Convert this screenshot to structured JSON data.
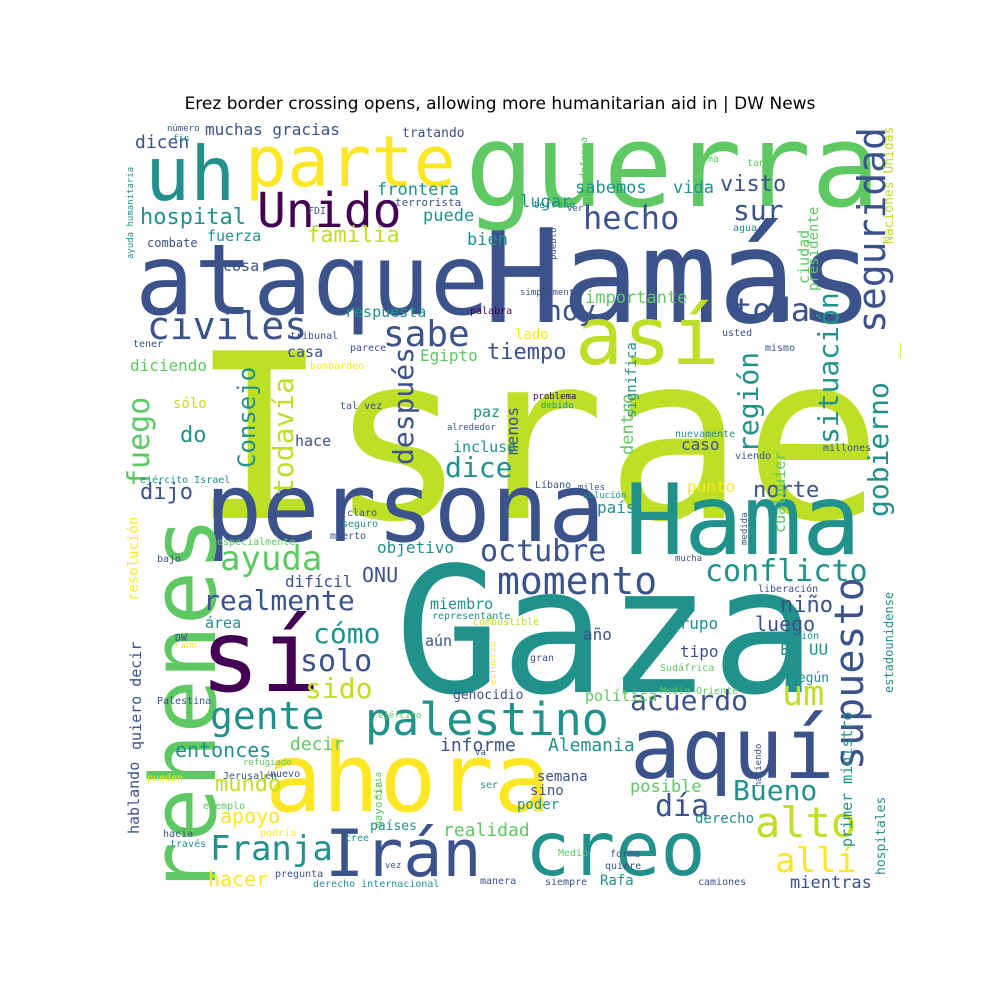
{
  "title": "Erez border crossing opens, allowing more humanitarian aid in | DW News",
  "palette": [
    "#440154",
    "#3b528b",
    "#21918c",
    "#5ec962",
    "#fde725",
    "#bddf26",
    "#2a788e",
    "#7ad151"
  ],
  "words": [
    "Israel",
    "Gaza",
    "Hamás",
    "guerra",
    "persona",
    "Hama",
    "ataque",
    "rehenes",
    "ahora",
    "sí",
    "uh",
    "parte",
    "así",
    "aquí",
    "creo",
    "Irán",
    "palestino",
    "momento",
    "Unido",
    "civiles",
    "gente",
    "seguridad",
    "supuesto",
    "conflicto",
    "sabe",
    "alto",
    "ayuda",
    "allí",
    "Franja",
    "hecho",
    "toda",
    "realmente",
    "octubre",
    "situación",
    "gobierno",
    "región",
    "después",
    "todavía",
    "Consejo",
    "fuego",
    "dice",
    "solo",
    "cómo",
    "um",
    "acuerdo",
    "Bueno",
    "día",
    "sido",
    "hoy",
    "sur",
    "visto",
    "hospital",
    "familia",
    "dijo",
    "do",
    "tiempo",
    "norte",
    "ONU",
    "niño",
    "luego",
    "entonces",
    "informe",
    "Alemania",
    "mundo",
    "apoyo",
    "hacer",
    "decir",
    "realidad",
    "posible",
    "mientras",
    "muchas gracias",
    "dicen",
    "frontera",
    "sabemos",
    "vida",
    "lugar",
    "puede",
    "bien",
    "fuerza",
    "cosa",
    "importante",
    "respuesta",
    "casa",
    "Egipto",
    "diciendo",
    "sólo",
    "paz",
    "menos",
    "incluso",
    "hace",
    "dentro",
    "significa",
    "caso",
    "cualquier",
    "ciudad",
    "presidente",
    "punto",
    "país",
    "objetivo",
    "difícil",
    "miembro",
    "aún",
    "año",
    "tipo",
    "grupo",
    "área",
    "EE UU",
    "según",
    "genocidio",
    "política",
    "quiero decir",
    "resolución",
    "hablando",
    "primer ministro",
    "semana",
    "poder",
    "sino",
    "derecho",
    "hospitales",
    "Naciones Unidas",
    "estadounidense",
    "Rafa",
    "lado",
    "mayoría",
    "países",
    "tratando",
    "defensa",
    "arma",
    "tan",
    "número",
    "fin",
    "terrorista",
    "terreno",
    "pueblo",
    "agua",
    "ayuda humanitaria",
    "combate",
    "FDI",
    "ver",
    "palabra",
    "simplemente",
    "tribunal",
    "tener",
    "parece",
    "bombardeo",
    "mismo",
    "usted",
    "tal vez",
    "problema",
    "debido",
    "alrededor",
    "nuevamente",
    "viendo",
    "millones",
    "ejército Israel",
    "Líbano",
    "miles",
    "solución",
    "claro",
    "seguro",
    "muerto",
    "especialmente",
    "bajo",
    "medida",
    "mucha",
    "liberación",
    "representante",
    "combustible",
    "DW",
    "cabo",
    "esfuerzo",
    "gran",
    "población",
    "Sudáfrica",
    "Medio Oriente",
    "Palestina",
    "ejército",
    "va",
    "refugiado",
    "Jerusalén",
    "nuevo",
    "pueden",
    "Siria",
    "ser",
    "haciendo",
    "ejemplo",
    "hacia",
    "podría",
    "través",
    "cree",
    "Medio",
    "pregunta",
    "vez",
    "derecho internacional",
    "manera",
    "siempre",
    "forma",
    "quiere",
    "camiones"
  ]
}
